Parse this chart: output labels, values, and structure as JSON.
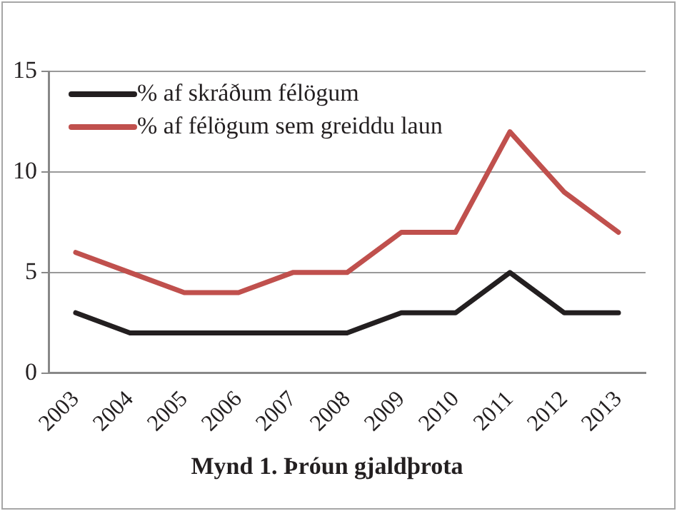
{
  "chart_data": {
    "type": "line",
    "title": "Mynd 1. Þróun gjaldþrota",
    "categories": [
      "2003",
      "2004",
      "2005",
      "2006",
      "2007",
      "2008",
      "2009",
      "2010",
      "2011",
      "2012",
      "2013"
    ],
    "series": [
      {
        "name": "% af skráðum félögum",
        "color": "#231f20",
        "values": [
          3,
          2,
          2,
          2,
          2,
          2,
          3,
          3,
          5,
          3,
          3
        ]
      },
      {
        "name": "% af félögum sem greiddu laun",
        "color": "#c0504d",
        "values": [
          6,
          5,
          4,
          4,
          5,
          5,
          7,
          7,
          12,
          9,
          7
        ]
      }
    ],
    "ylim": [
      0,
      15
    ],
    "yticks": [
      0,
      5,
      10,
      15
    ],
    "grid": "y",
    "legend": "top left",
    "marker": "none",
    "line_style": "solid"
  }
}
